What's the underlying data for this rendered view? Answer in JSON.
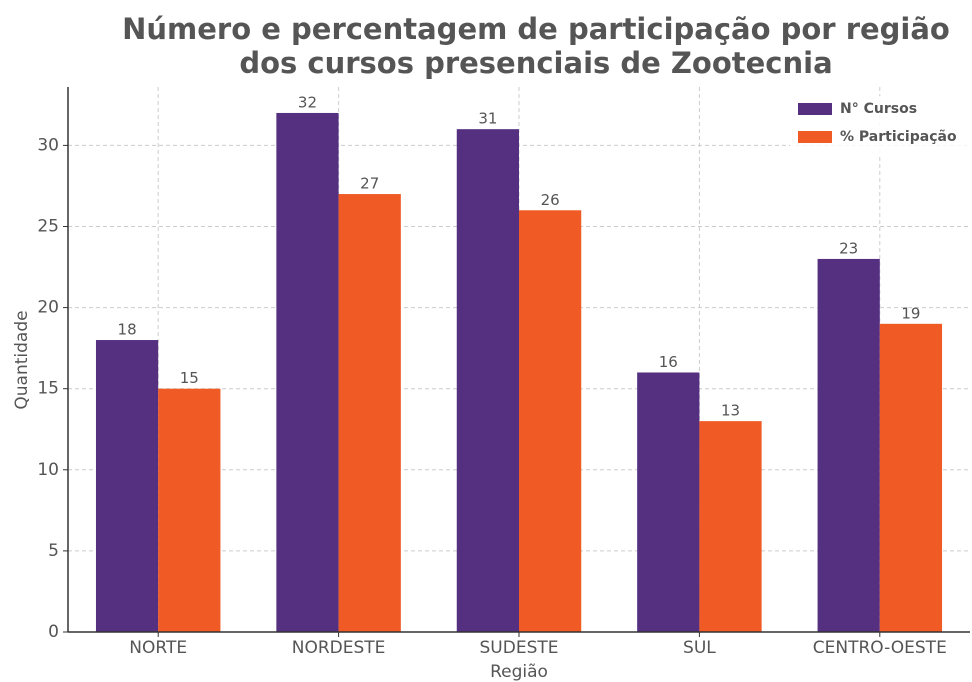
{
  "chart_data": {
    "type": "bar",
    "title": "Número e percentagem de participação por região dos cursos presenciais de Zootecnia",
    "x_label": "Região",
    "y_label": "Quantidade",
    "categories": [
      "NORTE",
      "NORDESTE",
      "SUDESTE",
      "SUL",
      "CENTRO-OESTE"
    ],
    "series": [
      {
        "name": "N° Cursos",
        "color": "#553081",
        "values": [
          18,
          32,
          31,
          16,
          23
        ]
      },
      {
        "name": "% Participação",
        "color": "#f05a24",
        "values": [
          15,
          27,
          26,
          13,
          19
        ]
      }
    ],
    "ylim": [
      0,
      33.6
    ],
    "yticks": [
      0,
      5,
      10,
      15,
      20,
      25,
      30
    ],
    "grid": true,
    "legend": "upper right"
  }
}
